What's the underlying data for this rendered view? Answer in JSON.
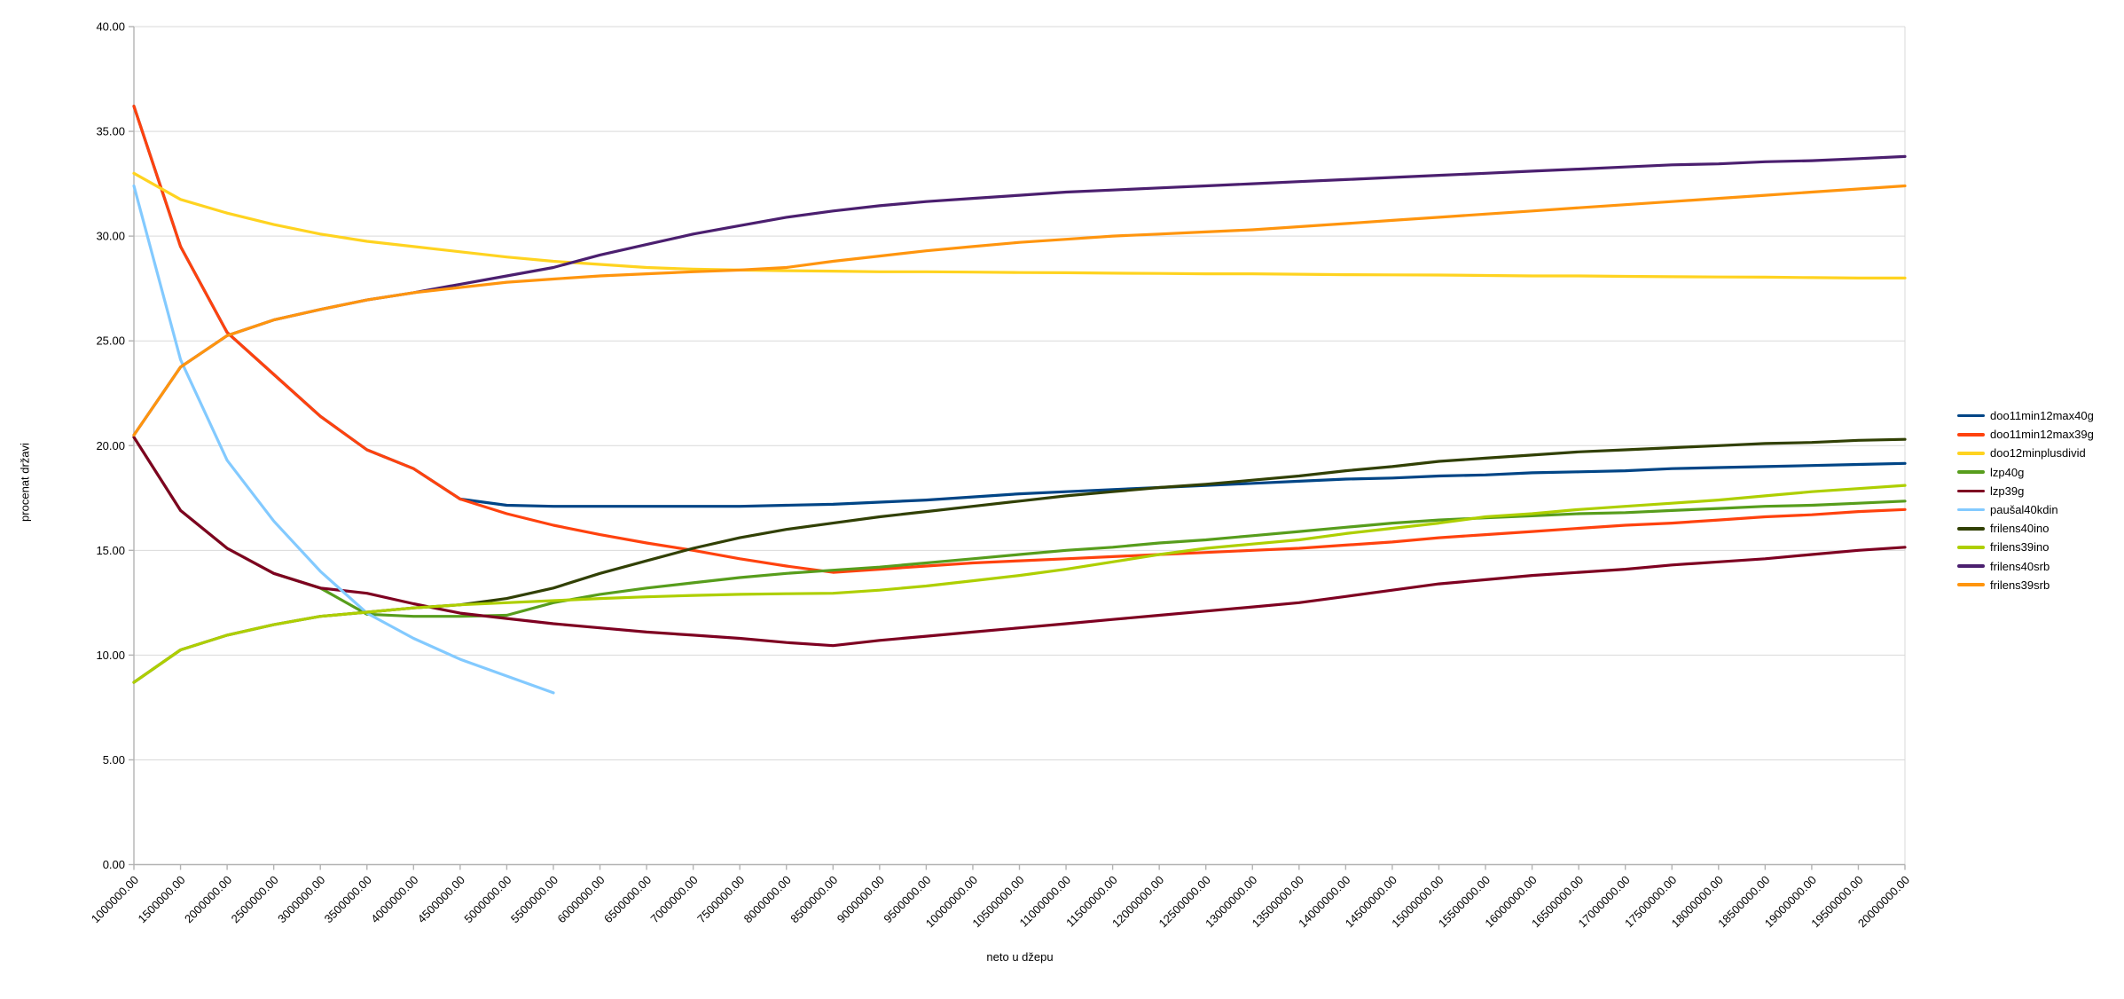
{
  "chart_data": {
    "type": "line",
    "title": "",
    "xlabel": "neto u džepu",
    "ylabel": "procenat državi",
    "ylim": [
      0,
      40
    ],
    "y_tick_step": 5,
    "y_tick_labels": [
      "0.00",
      "5.00",
      "10.00",
      "15.00",
      "20.00",
      "25.00",
      "30.00",
      "35.00",
      "40.00"
    ],
    "grid": true,
    "legend_position": "right",
    "colors": {
      "grid": "#d9d9d9",
      "axis": "#b3b3b3",
      "background": "#ffffff",
      "text": "#000000"
    },
    "categories": [
      "1000000.00",
      "1500000.00",
      "2000000.00",
      "2500000.00",
      "3000000.00",
      "3500000.00",
      "4000000.00",
      "4500000.00",
      "5000000.00",
      "5500000.00",
      "6000000.00",
      "6500000.00",
      "7000000.00",
      "7500000.00",
      "8000000.00",
      "8500000.00",
      "9000000.00",
      "9500000.00",
      "10000000.00",
      "10500000.00",
      "11000000.00",
      "11500000.00",
      "12000000.00",
      "12500000.00",
      "13000000.00",
      "13500000.00",
      "14000000.00",
      "14500000.00",
      "15000000.00",
      "15500000.00",
      "16000000.00",
      "16500000.00",
      "17000000.00",
      "17500000.00",
      "18000000.00",
      "18500000.00",
      "19000000.00",
      "19500000.00",
      "20000000.00"
    ],
    "series": [
      {
        "name": "doo11min12max40g",
        "color": "#004586",
        "values": [
          36.2,
          29.5,
          25.4,
          23.4,
          21.4,
          19.8,
          18.9,
          17.45,
          17.15,
          17.1,
          17.1,
          17.1,
          17.1,
          17.1,
          17.15,
          17.2,
          17.3,
          17.4,
          17.55,
          17.7,
          17.8,
          17.9,
          18.0,
          18.1,
          18.2,
          18.3,
          18.4,
          18.45,
          18.55,
          18.6,
          18.7,
          18.75,
          18.8,
          18.9,
          18.95,
          19.0,
          19.05,
          19.1,
          19.15
        ]
      },
      {
        "name": "doo11min12max39g",
        "color": "#FF420E",
        "values": [
          36.2,
          29.5,
          25.4,
          23.4,
          21.4,
          19.8,
          18.9,
          17.45,
          16.75,
          16.2,
          15.75,
          15.35,
          15.0,
          14.6,
          14.25,
          13.95,
          14.1,
          14.25,
          14.4,
          14.5,
          14.6,
          14.7,
          14.8,
          14.9,
          15.0,
          15.1,
          15.25,
          15.4,
          15.6,
          15.75,
          15.9,
          16.05,
          16.2,
          16.3,
          16.45,
          16.6,
          16.7,
          16.85,
          16.95
        ]
      },
      {
        "name": "doo12minplusdivid",
        "color": "#FFD320",
        "values": [
          33.0,
          31.75,
          31.1,
          30.55,
          30.1,
          29.75,
          29.5,
          29.25,
          29.0,
          28.8,
          28.65,
          28.5,
          28.42,
          28.38,
          28.35,
          28.33,
          28.3,
          28.3,
          28.28,
          28.26,
          28.25,
          28.23,
          28.22,
          28.2,
          28.2,
          28.18,
          28.16,
          28.15,
          28.14,
          28.12,
          28.1,
          28.1,
          28.08,
          28.06,
          28.05,
          28.04,
          28.02,
          28.0,
          28.0
        ]
      },
      {
        "name": "lzp40g",
        "color": "#579D1C",
        "values": [
          20.4,
          16.9,
          15.1,
          13.9,
          13.2,
          11.95,
          11.85,
          11.85,
          11.9,
          12.5,
          12.9,
          13.2,
          13.45,
          13.7,
          13.9,
          14.05,
          14.2,
          14.4,
          14.6,
          14.8,
          15.0,
          15.15,
          15.35,
          15.5,
          15.7,
          15.9,
          16.1,
          16.3,
          16.45,
          16.55,
          16.65,
          16.75,
          16.8,
          16.9,
          17.0,
          17.1,
          17.15,
          17.25,
          17.35
        ]
      },
      {
        "name": "lzp39g",
        "color": "#7E0021",
        "values": [
          20.4,
          16.9,
          15.1,
          13.9,
          13.2,
          12.95,
          12.45,
          12.0,
          11.75,
          11.5,
          11.3,
          11.1,
          10.95,
          10.8,
          10.6,
          10.45,
          10.7,
          10.9,
          11.1,
          11.3,
          11.5,
          11.7,
          11.9,
          12.1,
          12.3,
          12.5,
          12.8,
          13.1,
          13.4,
          13.6,
          13.8,
          13.95,
          14.1,
          14.3,
          14.45,
          14.6,
          14.8,
          15.0,
          15.15
        ]
      },
      {
        "name": "paušal40kdin",
        "color": "#83CAFF",
        "values": [
          32.4,
          24.1,
          19.3,
          16.4,
          14.0,
          12.0,
          10.8,
          9.8,
          9.0,
          8.2,
          null,
          null,
          null,
          null,
          null,
          null,
          null,
          null,
          null,
          null,
          null,
          null,
          null,
          null,
          null,
          null,
          null,
          null,
          null,
          null,
          null,
          null,
          null,
          null,
          null,
          null,
          null,
          null,
          null
        ]
      },
      {
        "name": "frilens40ino",
        "color": "#314004",
        "values": [
          8.7,
          10.25,
          10.95,
          11.45,
          11.85,
          12.05,
          12.25,
          12.4,
          12.7,
          13.2,
          13.9,
          14.5,
          15.1,
          15.6,
          16.0,
          16.3,
          16.6,
          16.85,
          17.1,
          17.35,
          17.6,
          17.8,
          18.0,
          18.15,
          18.35,
          18.55,
          18.8,
          19.0,
          19.25,
          19.4,
          19.55,
          19.7,
          19.8,
          19.9,
          20.0,
          20.1,
          20.15,
          20.25,
          20.3
        ]
      },
      {
        "name": "frilens39ino",
        "color": "#AECF00",
        "values": [
          8.7,
          10.25,
          10.95,
          11.45,
          11.85,
          12.05,
          12.25,
          12.4,
          12.5,
          12.6,
          12.7,
          12.78,
          12.85,
          12.9,
          12.93,
          12.95,
          13.1,
          13.3,
          13.55,
          13.8,
          14.1,
          14.45,
          14.8,
          15.1,
          15.3,
          15.5,
          15.8,
          16.05,
          16.3,
          16.6,
          16.75,
          16.95,
          17.1,
          17.25,
          17.4,
          17.6,
          17.8,
          17.95,
          18.1
        ]
      },
      {
        "name": "frilens40srb",
        "color": "#4B1F6F",
        "values": [
          20.5,
          23.75,
          25.25,
          26.0,
          26.5,
          26.95,
          27.3,
          27.7,
          28.1,
          28.5,
          29.1,
          29.6,
          30.1,
          30.5,
          30.9,
          31.2,
          31.45,
          31.65,
          31.8,
          31.95,
          32.1,
          32.2,
          32.3,
          32.4,
          32.5,
          32.6,
          32.7,
          32.8,
          32.9,
          33.0,
          33.1,
          33.2,
          33.3,
          33.4,
          33.45,
          33.55,
          33.6,
          33.7,
          33.8
        ]
      },
      {
        "name": "frilens39srb",
        "color": "#FF950E",
        "values": [
          20.5,
          23.75,
          25.25,
          26.0,
          26.5,
          26.95,
          27.3,
          27.55,
          27.8,
          27.95,
          28.1,
          28.2,
          28.3,
          28.38,
          28.5,
          28.8,
          29.05,
          29.3,
          29.5,
          29.7,
          29.85,
          30.0,
          30.1,
          30.2,
          30.3,
          30.45,
          30.6,
          30.75,
          30.9,
          31.05,
          31.2,
          31.35,
          31.5,
          31.65,
          31.8,
          31.95,
          32.1,
          32.25,
          32.4
        ]
      }
    ]
  }
}
